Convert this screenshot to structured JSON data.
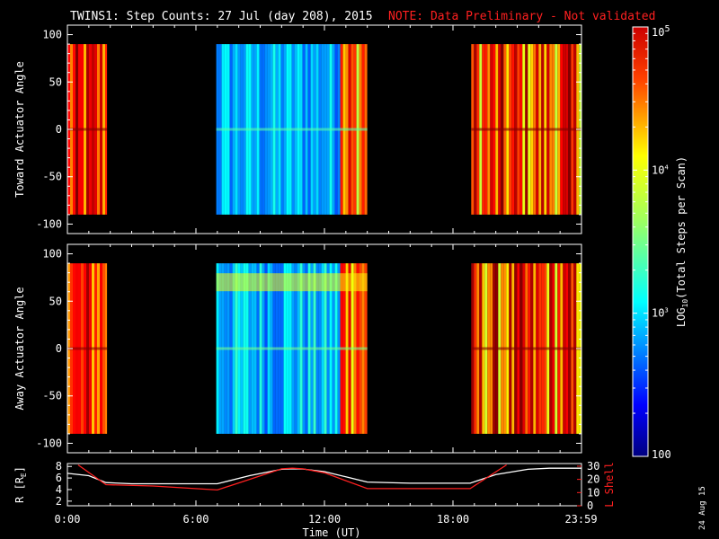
{
  "header": {
    "title": "TWINS1: Step Counts: 27 Jul (day 208), 2015",
    "note": "NOTE: Data Preliminary - Not validated"
  },
  "footer": {
    "date_stamp": "24 Aug 15"
  },
  "colors": {
    "background": "#000000",
    "axes": "#ffffff",
    "note": "#ff2020",
    "r_line": "#ffffff",
    "lshell_line": "#ff2020"
  },
  "chart_data": [
    {
      "type": "heatmap",
      "name": "toward",
      "ylabel": "Toward Actuator Angle",
      "ylim": [
        -110,
        110
      ],
      "yticks": [
        "100",
        "50",
        "0",
        "-50",
        "-100"
      ],
      "ytick_values": [
        100,
        50,
        0,
        -50,
        -100
      ],
      "data_ylim": [
        -90,
        90
      ],
      "xlim_hours": [
        0,
        24
      ],
      "data_blocks": [
        {
          "start_h": 0.0,
          "end_h": 1.85,
          "log_level_range": [
            3.9,
            5.0
          ]
        },
        {
          "start_h": 6.95,
          "end_h": 14.0,
          "log_level_range": [
            2.6,
            3.2
          ],
          "edge_high_start_h": 12.7
        },
        {
          "start_h": 18.85,
          "end_h": 23.99,
          "log_level_range": [
            3.7,
            5.0
          ]
        }
      ]
    },
    {
      "type": "heatmap",
      "name": "away",
      "ylabel": "Away Actuator Angle",
      "ylim": [
        -110,
        110
      ],
      "yticks": [
        "100",
        "50",
        "0",
        "-50",
        "-100"
      ],
      "ytick_values": [
        100,
        50,
        0,
        -50,
        -100
      ],
      "data_ylim": [
        -90,
        90
      ],
      "xlim_hours": [
        0,
        24
      ],
      "data_blocks": [
        {
          "start_h": 0.0,
          "end_h": 1.85,
          "log_level_range": [
            3.9,
            5.0
          ]
        },
        {
          "start_h": 6.95,
          "end_h": 14.0,
          "log_level_range": [
            2.6,
            3.3
          ],
          "edge_high_start_h": 12.7,
          "band_angle": 70
        },
        {
          "start_h": 18.85,
          "end_h": 23.99,
          "log_level_range": [
            3.7,
            5.0
          ]
        }
      ]
    },
    {
      "type": "line",
      "name": "orbit",
      "ylabel": "R [R",
      "ylabel_sub": "E",
      "ylabel_end": "]",
      "ylabel_right": "L Shell",
      "xlabel": "Time (UT)",
      "xticks": [
        "0:00",
        "6:00",
        "12:00",
        "18:00",
        "23:59"
      ],
      "xtick_hours": [
        0,
        6,
        12,
        18,
        23.98
      ],
      "yticks_left": [
        "8",
        "6",
        "4",
        "2"
      ],
      "yticks_left_values": [
        8,
        6,
        4,
        2
      ],
      "ylim_left": [
        1.2,
        8.5
      ],
      "yticks_right": [
        "30",
        "20",
        "10",
        "0"
      ],
      "yticks_right_values": [
        30,
        20,
        10,
        0
      ],
      "ylim_right": [
        0,
        32
      ],
      "series": [
        {
          "axis": "left",
          "x": [
            0,
            1,
            1.8,
            3,
            5,
            7,
            8.5,
            10,
            10.5,
            11,
            12,
            13,
            14,
            16,
            18.8,
            20,
            21.5,
            22.5,
            23.99
          ],
          "values": [
            6.8,
            6.4,
            5.2,
            5.0,
            5.0,
            5.0,
            6.4,
            7.5,
            7.6,
            7.55,
            7.1,
            6.2,
            5.3,
            5.1,
            5.1,
            6.6,
            7.5,
            7.7,
            7.7
          ]
        },
        {
          "axis": "right",
          "x": [
            0.5,
            1.8,
            4,
            7,
            10,
            10.5,
            11,
            12,
            14,
            18.8,
            20.5
          ],
          "values": [
            31,
            16,
            15,
            12,
            28,
            28.5,
            28,
            25,
            13,
            13,
            31
          ]
        }
      ]
    }
  ],
  "colorbar": {
    "label": "LOG",
    "label_sub": "10",
    "label_end": "(Total Steps per Scan)",
    "tick_top": "10",
    "tick_top_exp": "5",
    "tick_mid1": "10",
    "tick_mid1_exp": "4",
    "tick_mid2": "10",
    "tick_mid2_exp": "3",
    "tick_bottom": "100",
    "log_range": [
      2,
      5
    ],
    "tick_log_values": [
      5,
      4,
      3,
      2
    ]
  }
}
